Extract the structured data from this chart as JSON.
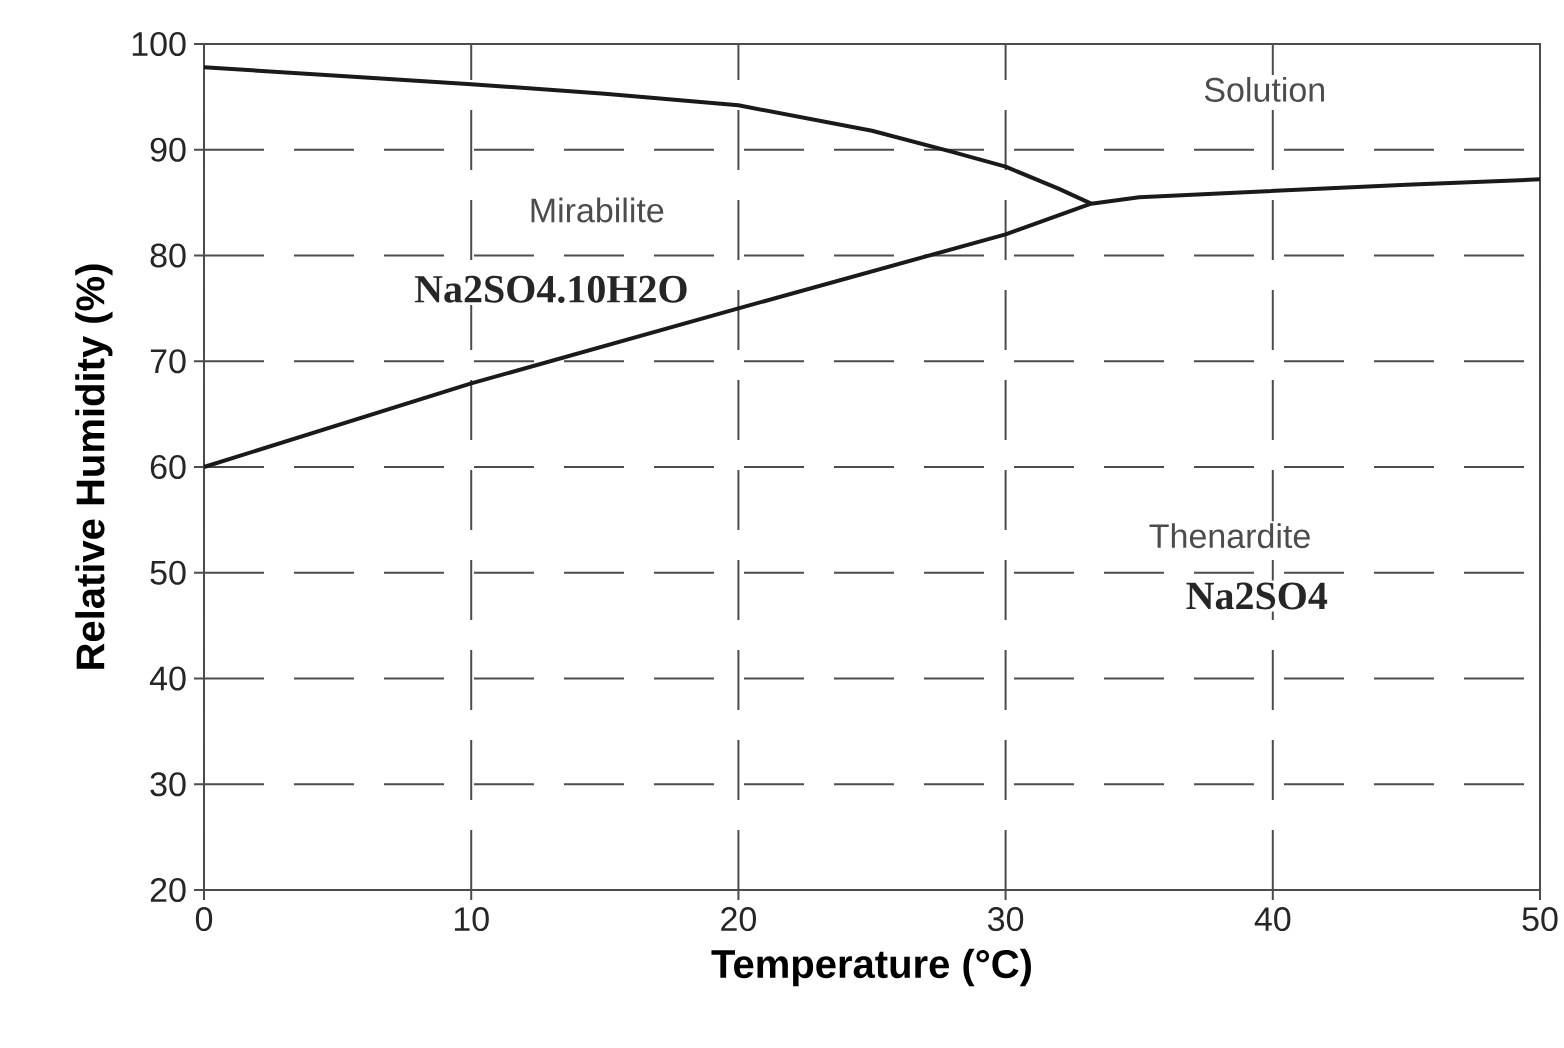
{
  "chart_data": {
    "type": "line",
    "xlabel": "Temperature (°C)",
    "ylabel": "Relative Humidity (%)",
    "xlim": [
      0,
      50
    ],
    "ylim": [
      20,
      100
    ],
    "xticks": [
      0,
      10,
      20,
      30,
      40,
      50
    ],
    "yticks": [
      20,
      30,
      40,
      50,
      60,
      70,
      80,
      90,
      100
    ],
    "grid": true,
    "line_style": "solid",
    "marker": "none",
    "series": [
      {
        "color": "#1a1a1a",
        "x": [
          0,
          5,
          10,
          15,
          20,
          25,
          28,
          30,
          32,
          33.2
        ],
        "values": [
          97.8,
          97,
          96.2,
          95.3,
          94.2,
          91.8,
          89.8,
          88.4,
          86.3,
          84.9
        ]
      },
      {
        "color": "#1a1a1a",
        "x": [
          0,
          10,
          20,
          30,
          33.2,
          35,
          40,
          45,
          50
        ],
        "values": [
          60,
          67.9,
          75,
          82,
          84.9,
          85.5,
          86.1,
          86.7,
          87.2
        ]
      }
    ],
    "annotations": [
      "Solution",
      "Mirabilite",
      "Na2SO4.10H2O",
      "Thenardite",
      "Na2SO4"
    ]
  }
}
